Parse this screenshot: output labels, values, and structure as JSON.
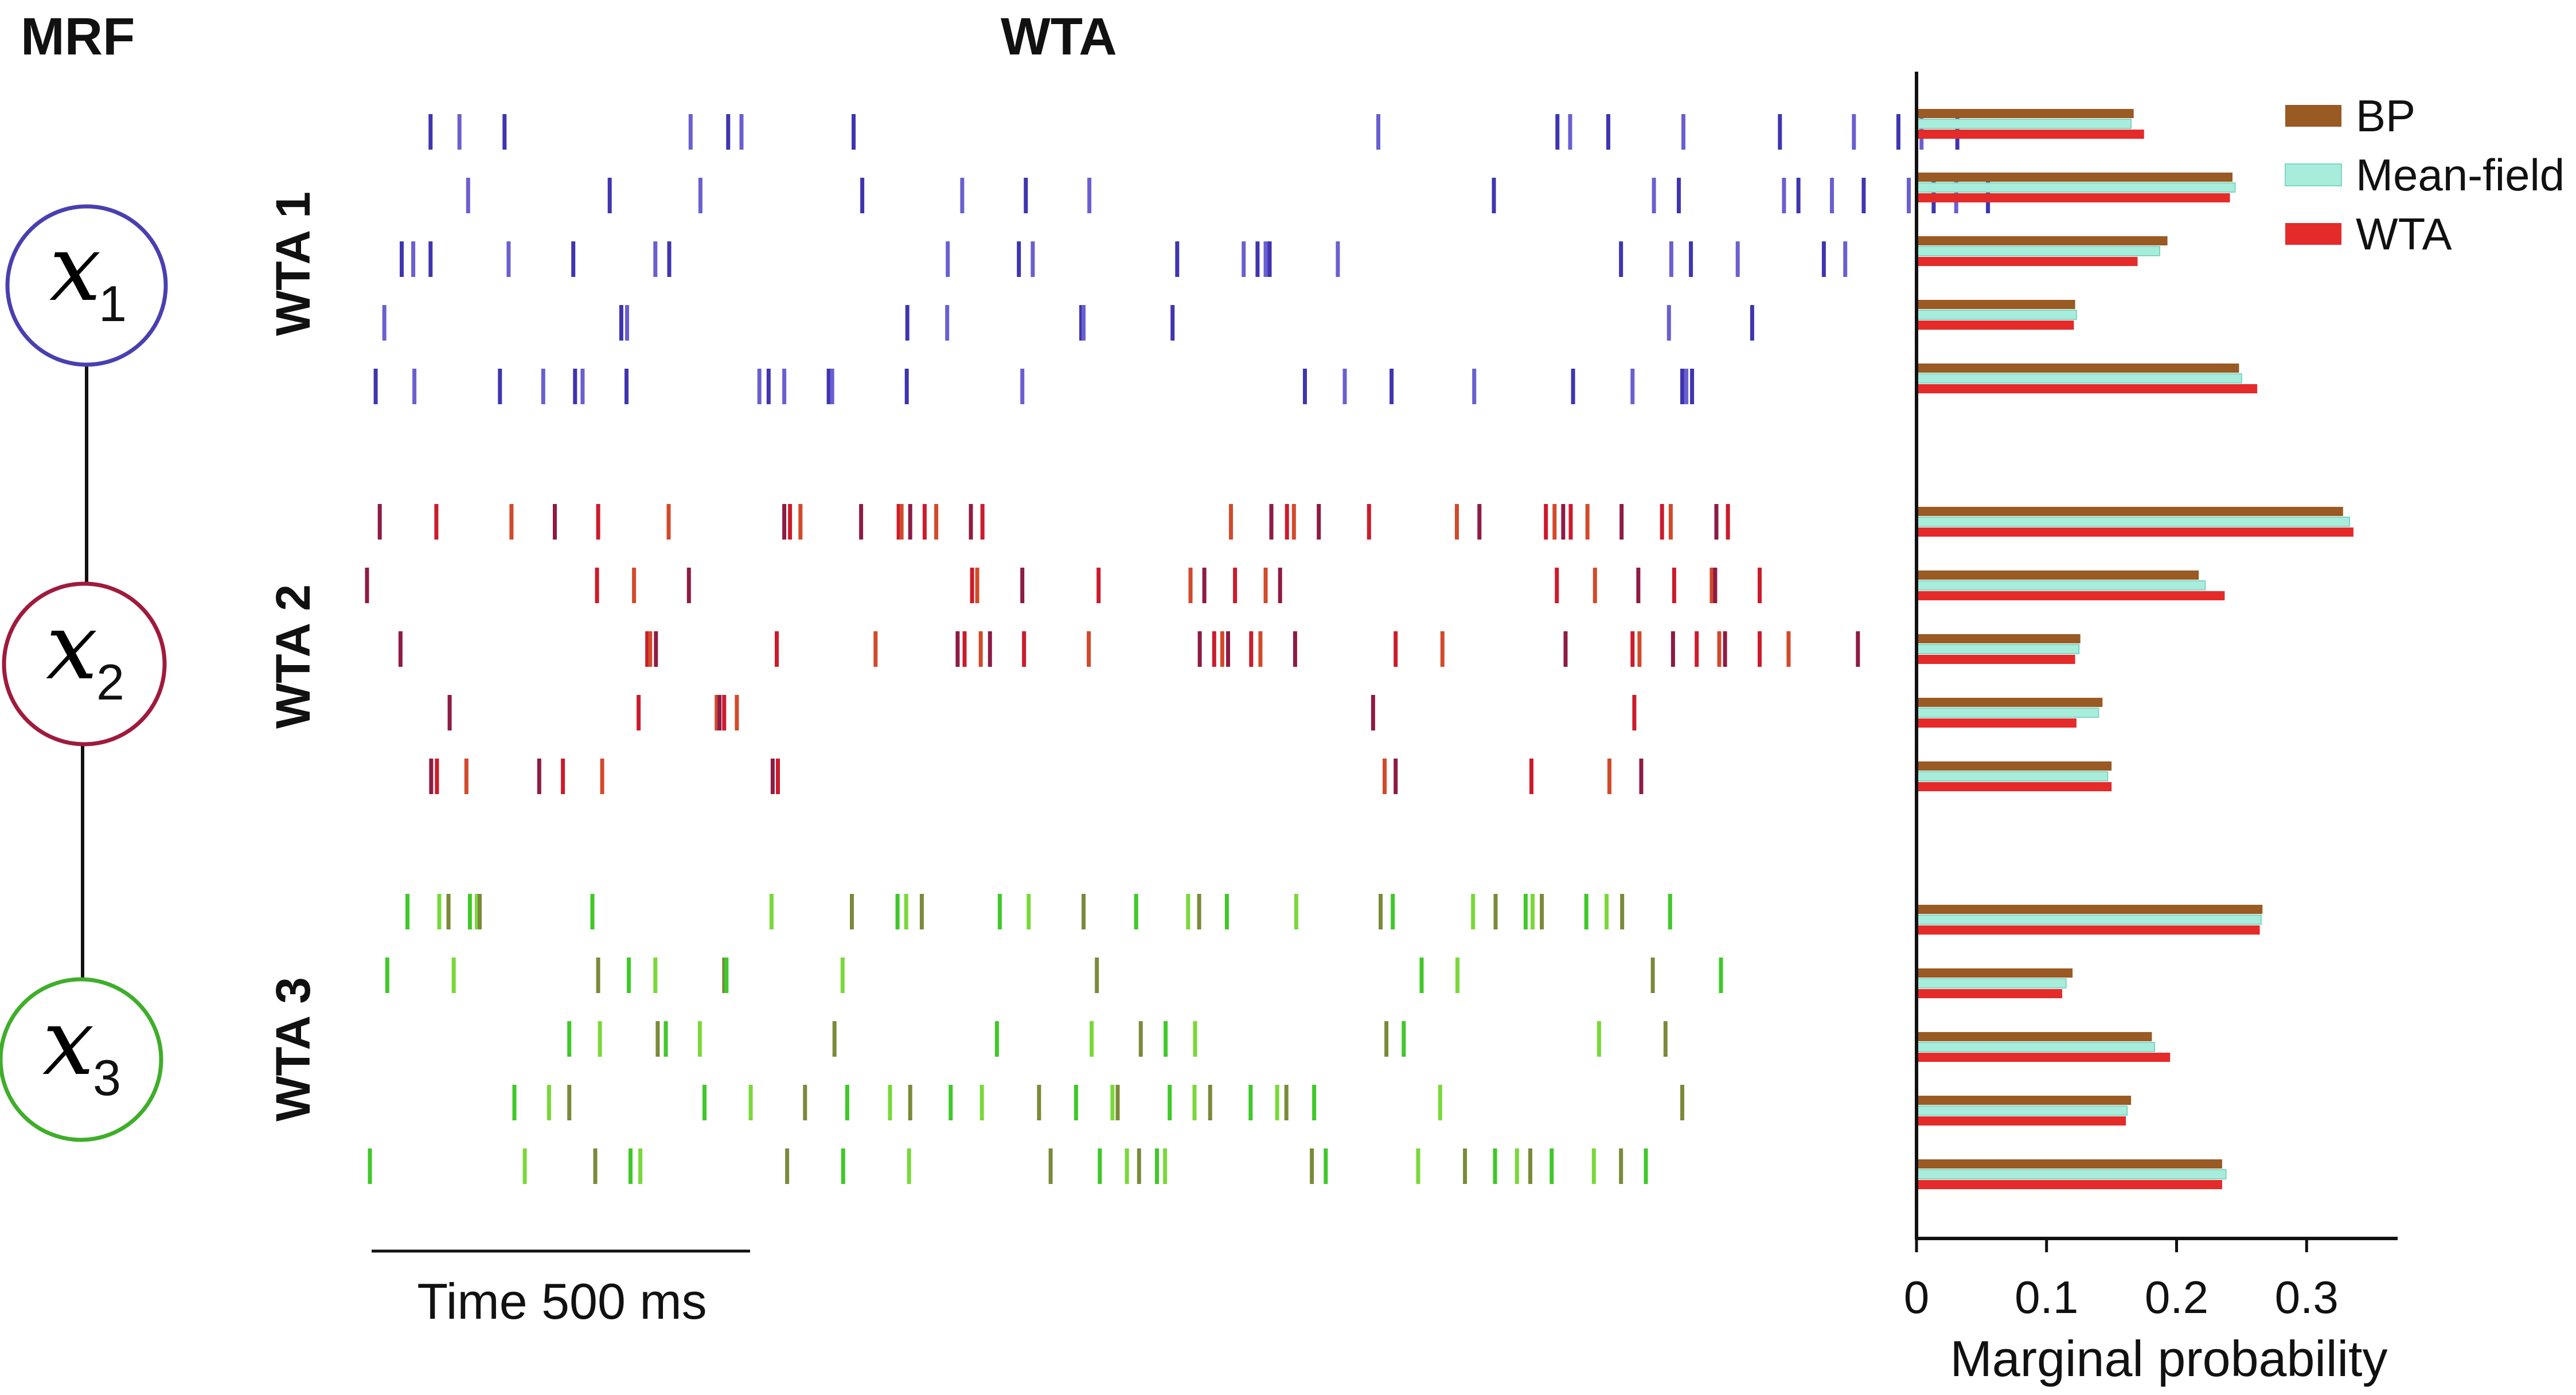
{
  "headers": {
    "mrf": "MRF",
    "wta": "WTA"
  },
  "mrf_nodes": [
    {
      "var": "x",
      "sub": "1",
      "color": "#4a3fb0"
    },
    {
      "var": "x",
      "sub": "2",
      "color": "#a01a3c"
    },
    {
      "var": "x",
      "sub": "3",
      "color": "#3fae2a"
    }
  ],
  "wta_groups": [
    {
      "label": "WTA 1",
      "color": "#5a4fc0",
      "colors": [
        "#3f35b0",
        "#6a5fd0"
      ]
    },
    {
      "label": "WTA 2",
      "color": "#b0163a",
      "colors": [
        "#8e1b45",
        "#cc1b2c",
        "#d24a2a"
      ]
    },
    {
      "label": "WTA 3",
      "color": "#5bc83a",
      "colors": [
        "#3fc82a",
        "#7ad83a",
        "#7a8a3a"
      ]
    }
  ],
  "time_scale": {
    "label": "Time 500 ms"
  },
  "spike_trains": [
    [
      [
        110,
        160,
        238,
        560,
        625,
        648,
        842,
        1750,
        2060,
        2082,
        2148,
        2278,
        2445,
        2573,
        2650,
        2690,
        2752
      ],
      [
        175,
        420,
        577,
        857,
        1030,
        1140,
        1250,
        1950,
        2227,
        2270,
        2452,
        2477,
        2535,
        2590,
        2668,
        2711,
        2750,
        2805
      ],
      [
        60,
        80,
        110,
        245,
        357,
        499,
        523,
        1005,
        1128,
        1152,
        1402,
        1517,
        1541,
        1555,
        1562,
        1680,
        2170,
        2257,
        2291,
        2372,
        2521,
        2558
      ],
      [
        30,
        440,
        450,
        935,
        1004,
        1236,
        1240,
        1394,
        2253,
        2397
      ],
      [
        15,
        82,
        230,
        305,
        360,
        373,
        449,
        679,
        695,
        722,
        799,
        805,
        934,
        1134,
        1623,
        1692,
        1773,
        1916,
        2087,
        2190,
        2276,
        2283,
        2293
      ]
    ],
    [
      [
        22,
        120,
        250,
        325,
        400,
        522,
        722,
        732,
        750,
        855,
        920,
        925,
        940,
        965,
        985,
        1045,
        1065,
        1495,
        1565,
        1592,
        1604,
        1647,
        1734,
        1886,
        1925,
        2040,
        2055,
        2070,
        2083,
        2112,
        2171,
        2241,
        2256,
        2335,
        2355
      ],
      [
        0,
        398,
        462,
        557,
        1047,
        1056,
        1134,
        1266,
        1425,
        1449,
        1502,
        1555,
        1580,
        2059,
        2125,
        2200,
        2262,
        2327,
        2333,
        2410
      ],
      [
        58,
        485,
        490,
        500,
        709,
        880,
        1022,
        1034,
        1062,
        1078,
        1137,
        1249,
        1441,
        1466,
        1480,
        1490,
        1530,
        1546,
        1606,
        1780,
        1861,
        2074,
        2190,
        2202,
        2260,
        2301,
        2340,
        2350,
        2410,
        2460,
        2580
      ],
      [
        143,
        470,
        605,
        610,
        618,
        640,
        1741,
        2193
      ],
      [
        111,
        121,
        172,
        298,
        339,
        407,
        702,
        711,
        1761,
        1780,
        2015,
        2150,
        2205
      ]
    ],
    [
      [
        70,
        125,
        141,
        178,
        190,
        195,
        390,
        700,
        839,
        918,
        933,
        960,
        1095,
        1145,
        1240,
        1331,
        1421,
        1440,
        1488,
        1608,
        1754,
        1775,
        1914,
        1953,
        2005,
        2017,
        2033,
        2110,
        2145,
        2172,
        2255
      ],
      [
        35,
        150,
        400,
        453,
        499,
        618,
        622,
        823,
        1263,
        1825,
        1887,
        2225,
        2343
      ],
      [
        350,
        403,
        503,
        517,
        576,
        809,
        1090,
        1254,
        1339,
        1382,
        1433,
        1764,
        1794,
        2132,
        2247
      ],
      [
        255,
        315,
        350,
        584,
        664,
        758,
        831,
        905,
        940,
        1010,
        1064,
        1163,
        1227,
        1290,
        1299,
        1389,
        1432,
        1459,
        1529,
        1575,
        1591,
        1639,
        1857,
        2276
      ],
      [
        5,
        273,
        395,
        456,
        473,
        727,
        824,
        938,
        1183,
        1268,
        1315,
        1336,
        1367,
        1381,
        1635,
        1659,
        1819,
        1900,
        1952,
        1990,
        2013,
        2050,
        2123,
        2170,
        2213
      ]
    ]
  ],
  "chart_data": {
    "type": "bar",
    "orientation": "horizontal",
    "xlabel": "Marginal probability",
    "ylabel": "",
    "xlim": [
      0,
      0.37
    ],
    "xticks": [
      "0",
      "0.1",
      "0.2",
      "0.3"
    ],
    "legend_position": "top-right",
    "series": [
      {
        "name": "BP",
        "color": "#995a24"
      },
      {
        "name": "Mean-field",
        "color": "#a8ecdc"
      },
      {
        "name": "WTA",
        "color": "#e52a2a"
      }
    ],
    "groups": [
      {
        "label": "WTA 1",
        "bars": [
          [
            0.167,
            0.165,
            0.175
          ],
          [
            0.243,
            0.245,
            0.241
          ],
          [
            0.193,
            0.187,
            0.17
          ],
          [
            0.122,
            0.123,
            0.121
          ],
          [
            0.248,
            0.25,
            0.262
          ]
        ]
      },
      {
        "label": "WTA 2",
        "bars": [
          [
            0.328,
            0.333,
            0.336
          ],
          [
            0.217,
            0.222,
            0.237
          ],
          [
            0.126,
            0.125,
            0.122
          ],
          [
            0.143,
            0.14,
            0.123
          ],
          [
            0.15,
            0.147,
            0.15
          ]
        ]
      },
      {
        "label": "WTA 3",
        "bars": [
          [
            0.266,
            0.265,
            0.264
          ],
          [
            0.12,
            0.115,
            0.112
          ],
          [
            0.181,
            0.183,
            0.195
          ],
          [
            0.165,
            0.162,
            0.161
          ],
          [
            0.235,
            0.238,
            0.235
          ]
        ]
      }
    ]
  }
}
